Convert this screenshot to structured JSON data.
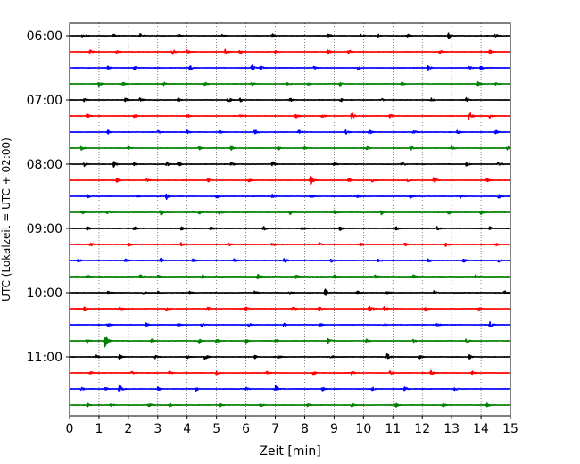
{
  "chart_data": {
    "type": "line",
    "title": "",
    "xlabel": "Zeit  [min]",
    "ylabel": "UTC (Lokalzeit = UTC + 02:00)",
    "xlim": [
      0,
      15
    ],
    "x_ticks": [
      "0",
      "1",
      "2",
      "3",
      "4",
      "5",
      "6",
      "7",
      "8",
      "9",
      "10",
      "11",
      "12",
      "13",
      "14",
      "15"
    ],
    "y_time_labels": [
      "06:00",
      "07:00",
      "08:00",
      "09:00",
      "10:00",
      "11:00"
    ],
    "traces_per_hour": 4,
    "trace_minutes": 15,
    "grid": "vertical-dotted",
    "colors_cycle": [
      "#000000",
      "#ff0000",
      "#0000ff",
      "#008000"
    ],
    "traces": [
      {
        "start": "06:00",
        "color": "#000000",
        "events": [
          [
            0.45,
            0.5
          ],
          [
            1.5,
            0.3
          ],
          [
            2.4,
            0.3
          ],
          [
            3.7,
            0.25
          ],
          [
            5.2,
            0.25
          ],
          [
            6.9,
            0.3
          ],
          [
            8.8,
            0.3
          ],
          [
            9.9,
            0.25
          ],
          [
            10.5,
            0.3
          ],
          [
            11.5,
            0.3
          ],
          [
            12.9,
            0.6
          ],
          [
            14.5,
            0.35
          ]
        ]
      },
      {
        "start": "06:15",
        "color": "#ff0000",
        "events": [
          [
            0.7,
            0.3
          ],
          [
            1.6,
            0.25
          ],
          [
            3.5,
            0.4
          ],
          [
            4.0,
            0.3
          ],
          [
            5.3,
            0.5
          ],
          [
            5.8,
            0.3
          ],
          [
            7.0,
            0.25
          ],
          [
            8.8,
            0.35
          ],
          [
            9.5,
            0.35
          ],
          [
            12.6,
            0.3
          ],
          [
            14.3,
            0.3
          ]
        ]
      },
      {
        "start": "06:30",
        "color": "#0000ff",
        "events": [
          [
            1.3,
            0.3
          ],
          [
            2.2,
            0.3
          ],
          [
            4.1,
            0.35
          ],
          [
            6.2,
            0.6
          ],
          [
            6.5,
            0.35
          ],
          [
            8.3,
            0.3
          ],
          [
            9.8,
            0.3
          ],
          [
            12.2,
            0.45
          ],
          [
            13.6,
            0.35
          ],
          [
            14.0,
            0.3
          ]
        ]
      },
      {
        "start": "06:45",
        "color": "#008000",
        "events": [
          [
            1.0,
            0.4
          ],
          [
            1.8,
            0.3
          ],
          [
            3.2,
            0.3
          ],
          [
            4.6,
            0.35
          ],
          [
            6.2,
            0.3
          ],
          [
            7.4,
            0.3
          ],
          [
            8.1,
            0.3
          ],
          [
            9.2,
            0.3
          ],
          [
            11.3,
            0.3
          ],
          [
            13.9,
            0.3
          ],
          [
            14.5,
            0.25
          ]
        ]
      },
      {
        "start": "07:00",
        "color": "#000000",
        "events": [
          [
            0.5,
            0.3
          ],
          [
            1.9,
            0.3
          ],
          [
            2.4,
            0.35
          ],
          [
            3.7,
            0.3
          ],
          [
            5.4,
            0.45
          ],
          [
            5.8,
            0.3
          ],
          [
            7.5,
            0.3
          ],
          [
            9.2,
            0.35
          ],
          [
            10.6,
            0.3
          ],
          [
            12.3,
            0.3
          ],
          [
            13.5,
            0.3
          ]
        ]
      },
      {
        "start": "07:15",
        "color": "#ff0000",
        "events": [
          [
            0.6,
            0.35
          ],
          [
            2.2,
            0.3
          ],
          [
            4.0,
            0.3
          ],
          [
            5.8,
            0.3
          ],
          [
            7.7,
            0.35
          ],
          [
            8.6,
            0.3
          ],
          [
            9.6,
            0.55
          ],
          [
            10.9,
            0.3
          ],
          [
            13.6,
            0.65
          ],
          [
            14.3,
            0.3
          ]
        ]
      },
      {
        "start": "07:30",
        "color": "#0000ff",
        "events": [
          [
            1.3,
            0.3
          ],
          [
            3.0,
            0.3
          ],
          [
            4.0,
            0.3
          ],
          [
            5.1,
            0.3
          ],
          [
            6.3,
            0.5
          ],
          [
            7.8,
            0.3
          ],
          [
            9.4,
            0.3
          ],
          [
            10.2,
            0.35
          ],
          [
            11.7,
            0.35
          ],
          [
            13.2,
            0.3
          ],
          [
            14.5,
            0.3
          ]
        ]
      },
      {
        "start": "07:45",
        "color": "#008000",
        "events": [
          [
            0.4,
            0.3
          ],
          [
            2.0,
            0.3
          ],
          [
            4.4,
            0.3
          ],
          [
            5.5,
            0.3
          ],
          [
            7.1,
            0.3
          ],
          [
            8.0,
            0.3
          ],
          [
            10.1,
            0.35
          ],
          [
            11.6,
            0.35
          ],
          [
            13.0,
            0.3
          ],
          [
            14.9,
            0.35
          ]
        ]
      },
      {
        "start": "08:00",
        "color": "#000000",
        "events": [
          [
            0.5,
            0.3
          ],
          [
            1.5,
            0.45
          ],
          [
            2.2,
            0.3
          ],
          [
            3.3,
            0.4
          ],
          [
            3.7,
            0.4
          ],
          [
            5.5,
            0.3
          ],
          [
            6.9,
            0.45
          ],
          [
            9.0,
            0.3
          ],
          [
            11.3,
            0.4
          ],
          [
            13.5,
            0.3
          ],
          [
            14.6,
            0.5
          ]
        ]
      },
      {
        "start": "08:15",
        "color": "#ff0000",
        "events": [
          [
            1.6,
            0.3
          ],
          [
            2.6,
            0.3
          ],
          [
            4.7,
            0.3
          ],
          [
            6.1,
            0.25
          ],
          [
            8.2,
            0.75
          ],
          [
            9.5,
            0.3
          ],
          [
            10.3,
            0.25
          ],
          [
            11.5,
            0.3
          ],
          [
            12.4,
            0.6
          ],
          [
            14.2,
            0.3
          ]
        ]
      },
      {
        "start": "08:30",
        "color": "#0000ff",
        "events": [
          [
            0.6,
            0.3
          ],
          [
            2.3,
            0.25
          ],
          [
            3.3,
            0.4
          ],
          [
            5.0,
            0.3
          ],
          [
            6.9,
            0.3
          ],
          [
            8.2,
            0.3
          ],
          [
            9.8,
            0.3
          ],
          [
            11.6,
            0.3
          ],
          [
            13.3,
            0.3
          ],
          [
            14.6,
            0.35
          ]
        ]
      },
      {
        "start": "08:45",
        "color": "#008000",
        "events": [
          [
            0.4,
            0.35
          ],
          [
            1.3,
            0.3
          ],
          [
            3.1,
            0.45
          ],
          [
            4.4,
            0.3
          ],
          [
            5.1,
            0.3
          ],
          [
            7.5,
            0.3
          ],
          [
            9.0,
            0.3
          ],
          [
            10.6,
            0.35
          ],
          [
            12.9,
            0.3
          ],
          [
            14.0,
            0.3
          ]
        ]
      },
      {
        "start": "09:00",
        "color": "#000000",
        "events": [
          [
            0.6,
            0.3
          ],
          [
            2.2,
            0.3
          ],
          [
            3.8,
            0.3
          ],
          [
            4.8,
            0.3
          ],
          [
            6.6,
            0.3
          ],
          [
            7.9,
            0.3
          ],
          [
            9.2,
            0.3
          ],
          [
            11.1,
            0.3
          ],
          [
            12.5,
            0.3
          ],
          [
            14.3,
            0.3
          ]
        ]
      },
      {
        "start": "09:15",
        "color": "#ff0000",
        "events": [
          [
            0.7,
            0.3
          ],
          [
            2.0,
            0.3
          ],
          [
            3.8,
            0.3
          ],
          [
            5.4,
            0.3
          ],
          [
            6.9,
            0.3
          ],
          [
            8.5,
            0.3
          ],
          [
            9.9,
            0.3
          ],
          [
            11.4,
            0.3
          ],
          [
            12.8,
            0.3
          ],
          [
            14.5,
            0.3
          ]
        ]
      },
      {
        "start": "09:30",
        "color": "#0000ff",
        "events": [
          [
            0.3,
            0.3
          ],
          [
            1.9,
            0.3
          ],
          [
            3.1,
            0.3
          ],
          [
            4.2,
            0.3
          ],
          [
            5.6,
            0.3
          ],
          [
            7.3,
            0.35
          ],
          [
            8.9,
            0.3
          ],
          [
            10.5,
            0.35
          ],
          [
            12.2,
            0.3
          ],
          [
            13.4,
            0.3
          ],
          [
            14.6,
            0.3
          ]
        ]
      },
      {
        "start": "09:45",
        "color": "#008000",
        "events": [
          [
            0.6,
            0.3
          ],
          [
            2.4,
            0.4
          ],
          [
            3.0,
            0.3
          ],
          [
            4.5,
            0.3
          ],
          [
            6.4,
            0.4
          ],
          [
            7.7,
            0.3
          ],
          [
            9.0,
            0.3
          ],
          [
            10.4,
            0.3
          ],
          [
            11.7,
            0.3
          ],
          [
            13.8,
            0.3
          ]
        ]
      },
      {
        "start": "10:00",
        "color": "#000000",
        "events": [
          [
            1.3,
            0.3
          ],
          [
            2.5,
            0.3
          ],
          [
            3.0,
            0.3
          ],
          [
            4.1,
            0.3
          ],
          [
            6.3,
            0.35
          ],
          [
            7.5,
            0.3
          ],
          [
            8.7,
            0.55
          ],
          [
            9.8,
            0.3
          ],
          [
            10.8,
            0.3
          ],
          [
            12.4,
            0.3
          ],
          [
            14.8,
            0.3
          ]
        ]
      },
      {
        "start": "10:15",
        "color": "#ff0000",
        "events": [
          [
            0.5,
            0.3
          ],
          [
            1.7,
            0.3
          ],
          [
            3.3,
            0.3
          ],
          [
            4.7,
            0.3
          ],
          [
            6.0,
            0.3
          ],
          [
            7.6,
            0.3
          ],
          [
            8.5,
            0.35
          ],
          [
            10.2,
            0.45
          ],
          [
            10.7,
            0.3
          ],
          [
            12.1,
            0.35
          ],
          [
            13.9,
            0.3
          ]
        ]
      },
      {
        "start": "10:30",
        "color": "#0000ff",
        "events": [
          [
            1.3,
            0.3
          ],
          [
            2.6,
            0.3
          ],
          [
            3.7,
            0.3
          ],
          [
            4.5,
            0.3
          ],
          [
            6.1,
            0.3
          ],
          [
            7.3,
            0.3
          ],
          [
            8.5,
            0.3
          ],
          [
            10.7,
            0.3
          ],
          [
            12.5,
            0.3
          ],
          [
            14.3,
            0.45
          ]
        ]
      },
      {
        "start": "10:45",
        "color": "#008000",
        "events": [
          [
            0.6,
            0.3
          ],
          [
            1.2,
            1.1
          ],
          [
            2.8,
            0.3
          ],
          [
            4.4,
            0.3
          ],
          [
            5.0,
            0.3
          ],
          [
            6.0,
            0.3
          ],
          [
            7.0,
            0.3
          ],
          [
            8.8,
            0.45
          ],
          [
            10.1,
            0.3
          ],
          [
            11.7,
            0.3
          ],
          [
            13.5,
            0.3
          ]
        ]
      },
      {
        "start": "11:00",
        "color": "#000000",
        "events": [
          [
            0.9,
            0.3
          ],
          [
            1.7,
            0.4
          ],
          [
            2.9,
            0.3
          ],
          [
            4.0,
            0.3
          ],
          [
            4.6,
            0.45
          ],
          [
            6.3,
            0.3
          ],
          [
            7.1,
            0.35
          ],
          [
            8.9,
            0.3
          ],
          [
            10.8,
            0.55
          ],
          [
            11.9,
            0.3
          ],
          [
            13.6,
            0.35
          ]
        ]
      },
      {
        "start": "11:15",
        "color": "#ff0000",
        "events": [
          [
            0.7,
            0.3
          ],
          [
            2.1,
            0.3
          ],
          [
            3.4,
            0.3
          ],
          [
            5.0,
            0.3
          ],
          [
            6.7,
            0.3
          ],
          [
            8.3,
            0.3
          ],
          [
            9.6,
            0.3
          ],
          [
            10.9,
            0.3
          ],
          [
            12.3,
            0.35
          ],
          [
            13.7,
            0.3
          ]
        ]
      },
      {
        "start": "11:30",
        "color": "#0000ff",
        "events": [
          [
            0.4,
            0.3
          ],
          [
            1.2,
            0.35
          ],
          [
            1.7,
            0.85
          ],
          [
            3.0,
            0.3
          ],
          [
            4.3,
            0.3
          ],
          [
            6.0,
            0.3
          ],
          [
            7.0,
            0.55
          ],
          [
            8.6,
            0.3
          ],
          [
            10.3,
            0.3
          ],
          [
            11.4,
            0.35
          ],
          [
            13.1,
            0.3
          ]
        ]
      },
      {
        "start": "11:45",
        "color": "#008000",
        "events": [
          [
            0.6,
            0.3
          ],
          [
            1.4,
            0.3
          ],
          [
            2.7,
            0.3
          ],
          [
            3.4,
            0.3
          ],
          [
            5.1,
            0.3
          ],
          [
            6.5,
            0.3
          ],
          [
            8.1,
            0.3
          ],
          [
            9.6,
            0.3
          ],
          [
            11.1,
            0.3
          ],
          [
            12.7,
            0.3
          ],
          [
            14.2,
            0.3
          ]
        ]
      }
    ]
  }
}
